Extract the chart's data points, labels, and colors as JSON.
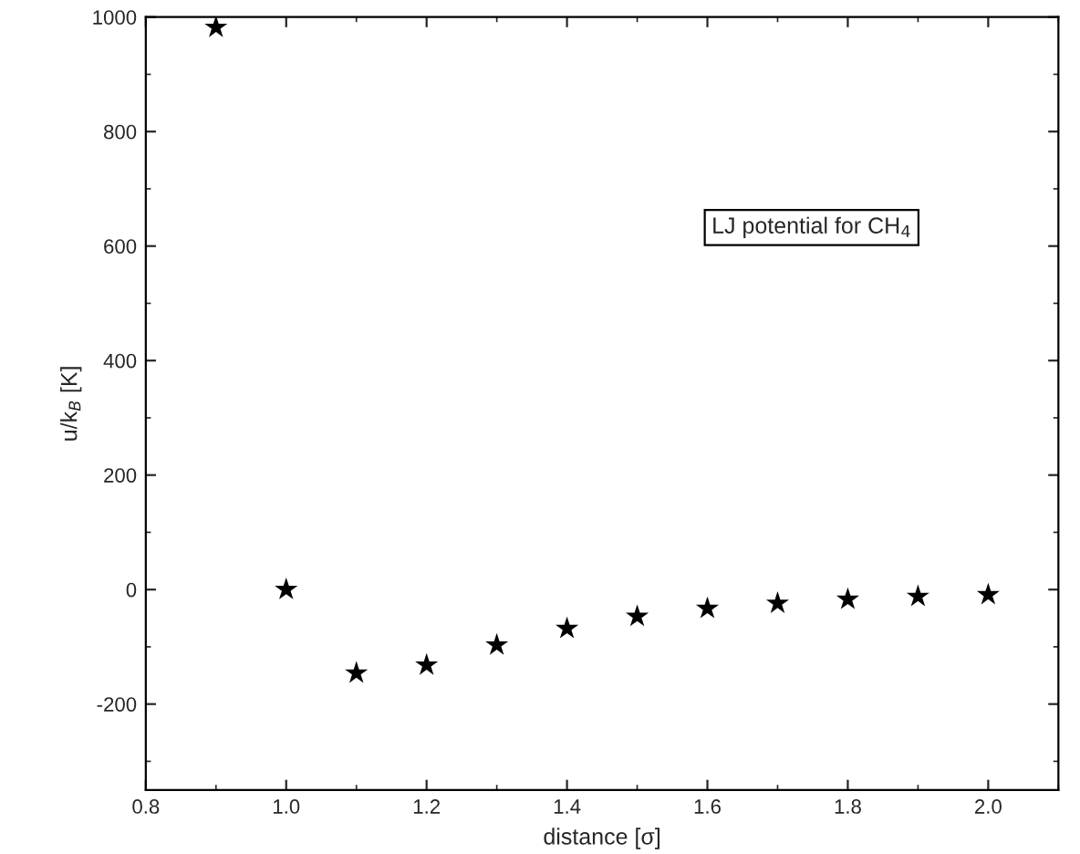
{
  "chart_data": {
    "type": "scatter",
    "xlabel": "distance [σ]",
    "ylabel": "u/k$_{B}$ [K]",
    "x": [
      0.9,
      1.0,
      1.1,
      1.2,
      1.3,
      1.4,
      1.5,
      1.6,
      1.7,
      1.8,
      1.9,
      2.0
    ],
    "series": [
      {
        "color": "#000000",
        "values": [
          982,
          0,
          -146,
          -132,
          -97,
          -68,
          -47,
          -33,
          -24,
          -17,
          -12,
          -9
        ]
      }
    ],
    "xlim": [
      0.8,
      2.1
    ],
    "xticks": [
      0.8,
      {
        "value": 1,
        "label": "1.0"
      },
      1.2,
      1.4,
      1.6,
      1.8,
      {
        "value": 2,
        "label": "2.0"
      }
    ],
    "ylim": [
      -350,
      1000
    ],
    "yticks": [
      -200,
      0,
      200,
      400,
      600,
      800,
      1000
    ],
    "marker": "star",
    "grid": false,
    "annotations": [
      "LJ potential for CH$_{4}$"
    ]
  }
}
